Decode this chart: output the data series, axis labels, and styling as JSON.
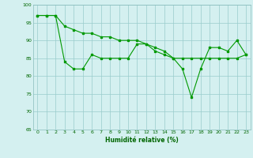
{
  "xlabel": "Humidité relative (%)",
  "x": [
    0,
    1,
    2,
    3,
    4,
    5,
    6,
    7,
    8,
    9,
    10,
    11,
    12,
    13,
    14,
    15,
    16,
    17,
    18,
    19,
    20,
    21,
    22,
    23
  ],
  "line1": [
    97,
    97,
    97,
    84,
    82,
    82,
    86,
    85,
    85,
    85,
    85,
    89,
    89,
    87,
    86,
    85,
    85,
    85,
    85,
    85,
    85,
    85,
    85,
    86
  ],
  "line2": [
    97,
    97,
    97,
    94,
    93,
    92,
    92,
    91,
    91,
    90,
    90,
    90,
    89,
    88,
    87,
    85,
    82,
    74,
    82,
    88,
    88,
    87,
    90,
    86
  ],
  "ylim": [
    65,
    100
  ],
  "yticks": [
    65,
    70,
    75,
    80,
    85,
    90,
    95,
    100
  ],
  "line_color": "#009900",
  "bg_color": "#d4f0f0",
  "grid_color": "#99cccc"
}
